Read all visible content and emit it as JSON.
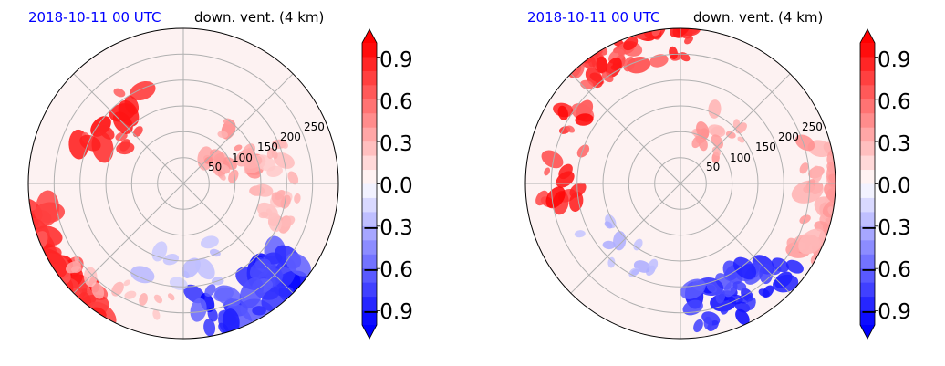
{
  "chart_data": [
    {
      "type": "heatmap",
      "projection": "polar",
      "title_left": "2018-10-11 00 UTC",
      "title_left_color": "#0000ff",
      "title_right": "down. vent. (4 km)",
      "radial_ticks": [
        "50",
        "100",
        "150",
        "200",
        "250"
      ],
      "radial_tick_values": [
        50,
        100,
        150,
        200,
        250
      ],
      "rlim": [
        0,
        300
      ],
      "angular_gridlines_deg": [
        0,
        45,
        90,
        135,
        180,
        225,
        270,
        315
      ],
      "grid": true,
      "colorbar": {
        "ticks": [
          "0.9",
          "0.6",
          "0.3",
          "0.0",
          "−0.3",
          "−0.6",
          "−0.9"
        ],
        "tick_values": [
          0.9,
          0.6,
          0.3,
          0.0,
          -0.3,
          -0.6,
          -0.9
        ],
        "vmin": -1.0,
        "vmax": 1.0,
        "extend": "both",
        "colormap": "bwr",
        "levels": 20
      },
      "features": [
        {
          "lat": 1.0,
          "lon": 215,
          "r": 10,
          "v": 1.0,
          "n": 34
        },
        {
          "lat": 0.82,
          "lon": 300,
          "r": 9,
          "v": -1.0,
          "n": 38
        },
        {
          "lat": 0.58,
          "lon": 135,
          "r": 8,
          "v": 1.0,
          "n": 16
        },
        {
          "lat": 0.35,
          "lon": 30,
          "r": 6,
          "v": 0.5,
          "n": 22
        },
        {
          "lat": 0.6,
          "lon": 0,
          "r": 6,
          "v": 0.35,
          "n": 26
        },
        {
          "lat": 0.8,
          "lon": 240,
          "r": 5,
          "v": 0.35,
          "n": 12
        },
        {
          "lat": 0.55,
          "lon": 270,
          "r": 6,
          "v": -0.3,
          "n": 10
        }
      ]
    },
    {
      "type": "heatmap",
      "projection": "polar",
      "title_left": "2018-10-11 00 UTC",
      "title_left_color": "#0000ff",
      "title_right": "down. vent. (4 km)",
      "radial_ticks": [
        "50",
        "100",
        "150",
        "200",
        "250"
      ],
      "radial_tick_values": [
        50,
        100,
        150,
        200,
        250
      ],
      "rlim": [
        0,
        300
      ],
      "angular_gridlines_deg": [
        0,
        45,
        90,
        135,
        180,
        225,
        270,
        315
      ],
      "grid": true,
      "colorbar": {
        "ticks": [
          "0.9",
          "0.6",
          "0.3",
          "0.0",
          "−0.3",
          "−0.6",
          "−0.9"
        ],
        "tick_values": [
          0.9,
          0.6,
          0.3,
          0.0,
          -0.3,
          -0.6,
          -0.9
        ],
        "vmin": -1.0,
        "vmax": 1.0,
        "extend": "both",
        "colormap": "bwr",
        "levels": 20
      },
      "features": [
        {
          "lat": 0.95,
          "lon": 110,
          "r": 6,
          "v": 1.0,
          "n": 46
        },
        {
          "lat": 0.8,
          "lon": 165,
          "r": 6,
          "v": 1.0,
          "n": 20
        },
        {
          "lat": 0.8,
          "lon": 300,
          "r": 7,
          "v": -1.0,
          "n": 40
        },
        {
          "lat": 0.95,
          "lon": 355,
          "r": 8,
          "v": 0.45,
          "n": 40
        },
        {
          "lat": 0.4,
          "lon": 60,
          "r": 5,
          "v": 0.45,
          "n": 16
        },
        {
          "lat": 0.6,
          "lon": 230,
          "r": 5,
          "v": -0.35,
          "n": 12
        }
      ]
    }
  ]
}
